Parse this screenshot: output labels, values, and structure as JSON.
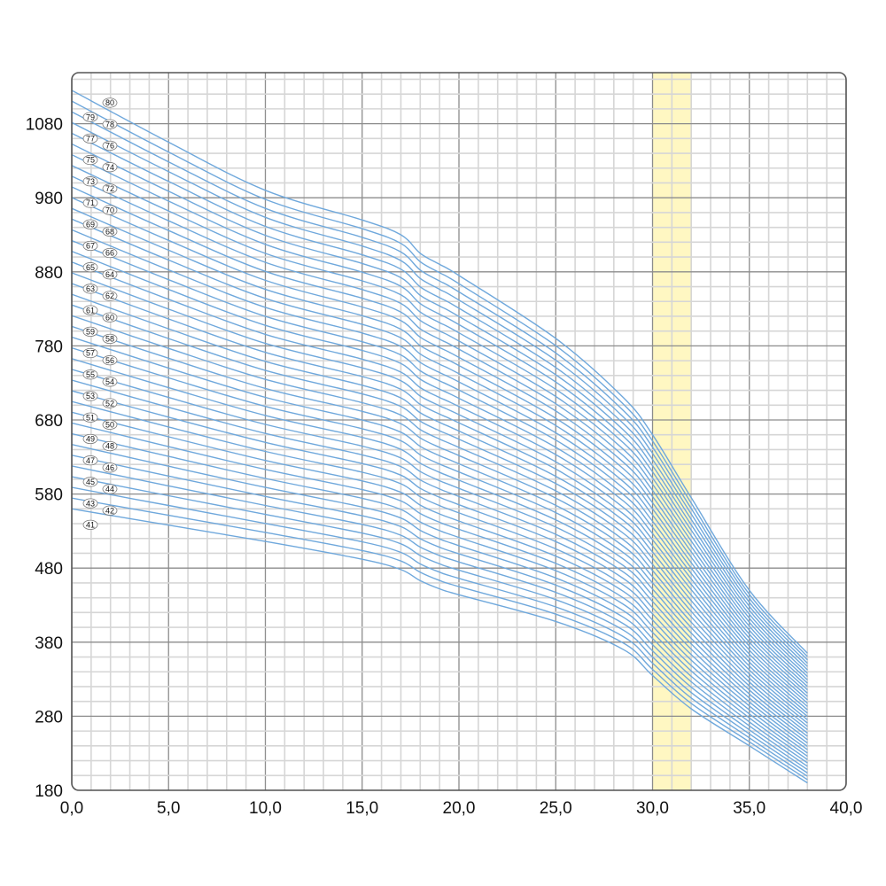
{
  "chart_data": {
    "type": "line",
    "title": "",
    "xlabel": "",
    "ylabel": "",
    "xlim": [
      0,
      40
    ],
    "ylim": [
      180,
      1160
    ],
    "x_ticks": [
      "0,0",
      "5,0",
      "10,0",
      "15,0",
      "20,0",
      "25,0",
      "30,0",
      "35,0",
      "40,0"
    ],
    "y_ticks": [
      "180",
      "280",
      "380",
      "480",
      "580",
      "680",
      "780",
      "880",
      "980",
      "1080"
    ],
    "grid": true,
    "highlight_band": {
      "x_from": 30,
      "x_to": 32,
      "color": "#fff7c2"
    },
    "series_color": "#6fa8dc",
    "curve_shape": {
      "x": [
        0,
        5,
        10,
        15,
        17,
        18,
        19,
        20,
        25,
        28.5,
        30,
        32,
        35,
        38
      ],
      "y_first": [
        560,
        538,
        516,
        492,
        478,
        463,
        452,
        444,
        408,
        370,
        335,
        290,
        240,
        190
      ],
      "y_last": [
        1125,
        1055,
        990,
        950,
        930,
        905,
        890,
        875,
        790,
        710,
        660,
        575,
        450,
        365
      ]
    },
    "series": [
      {
        "name": "41"
      },
      {
        "name": "42"
      },
      {
        "name": "43"
      },
      {
        "name": "44"
      },
      {
        "name": "45"
      },
      {
        "name": "46"
      },
      {
        "name": "47"
      },
      {
        "name": "48"
      },
      {
        "name": "49"
      },
      {
        "name": "50"
      },
      {
        "name": "51"
      },
      {
        "name": "52"
      },
      {
        "name": "53"
      },
      {
        "name": "54"
      },
      {
        "name": "55"
      },
      {
        "name": "56"
      },
      {
        "name": "57"
      },
      {
        "name": "58"
      },
      {
        "name": "59"
      },
      {
        "name": "60"
      },
      {
        "name": "61"
      },
      {
        "name": "62"
      },
      {
        "name": "63"
      },
      {
        "name": "64"
      },
      {
        "name": "65"
      },
      {
        "name": "66"
      },
      {
        "name": "67"
      },
      {
        "name": "68"
      },
      {
        "name": "69"
      },
      {
        "name": "70"
      },
      {
        "name": "71"
      },
      {
        "name": "72"
      },
      {
        "name": "73"
      },
      {
        "name": "74"
      },
      {
        "name": "75"
      },
      {
        "name": "76"
      },
      {
        "name": "77"
      },
      {
        "name": "78"
      },
      {
        "name": "79"
      },
      {
        "name": "80"
      }
    ]
  }
}
